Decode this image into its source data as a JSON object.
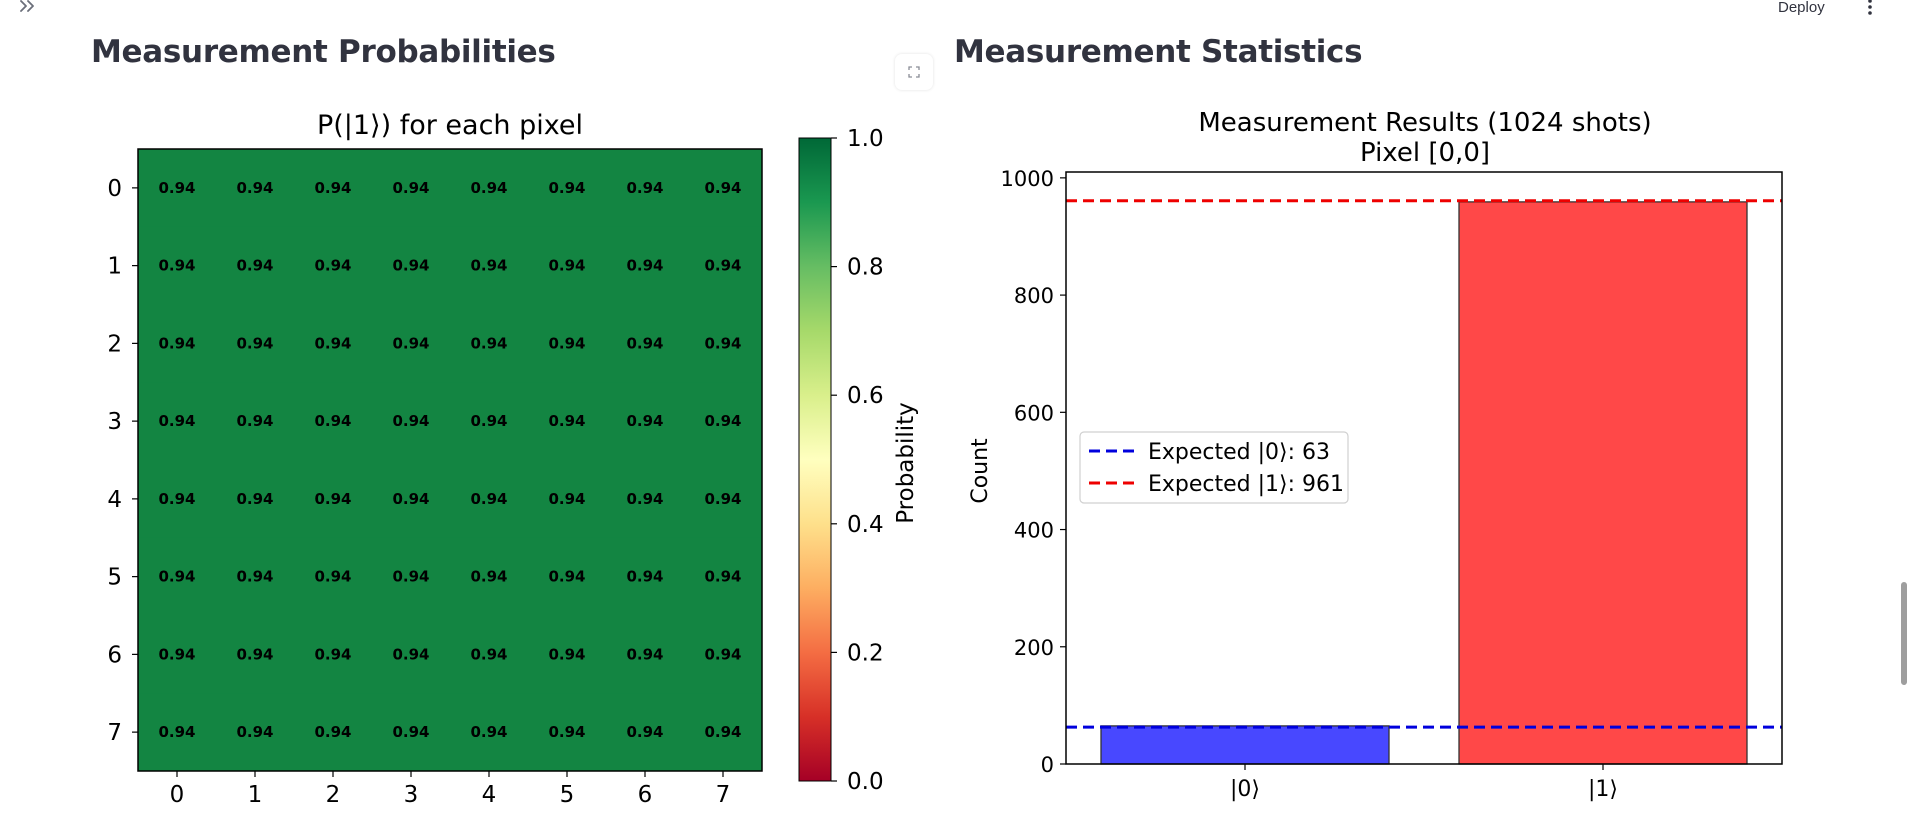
{
  "topbar": {
    "expand_icon": "double-chevron-right-icon",
    "deploy_label": "Deploy",
    "menu_icon": "kebab-menu-icon"
  },
  "left_panel": {
    "title": "Measurement Probabilities",
    "expand_icon": "fullscreen-icon"
  },
  "right_panel": {
    "title": "Measurement Statistics"
  },
  "chart_data": [
    {
      "type": "heatmap",
      "title": "P(|1⟩) for each pixel",
      "x_ticks": [
        "0",
        "1",
        "2",
        "3",
        "4",
        "5",
        "6",
        "7"
      ],
      "y_ticks": [
        "0",
        "1",
        "2",
        "3",
        "4",
        "5",
        "6",
        "7"
      ],
      "values": [
        [
          0.94,
          0.94,
          0.94,
          0.94,
          0.94,
          0.94,
          0.94,
          0.94
        ],
        [
          0.94,
          0.94,
          0.94,
          0.94,
          0.94,
          0.94,
          0.94,
          0.94
        ],
        [
          0.94,
          0.94,
          0.94,
          0.94,
          0.94,
          0.94,
          0.94,
          0.94
        ],
        [
          0.94,
          0.94,
          0.94,
          0.94,
          0.94,
          0.94,
          0.94,
          0.94
        ],
        [
          0.94,
          0.94,
          0.94,
          0.94,
          0.94,
          0.94,
          0.94,
          0.94
        ],
        [
          0.94,
          0.94,
          0.94,
          0.94,
          0.94,
          0.94,
          0.94,
          0.94
        ],
        [
          0.94,
          0.94,
          0.94,
          0.94,
          0.94,
          0.94,
          0.94,
          0.94
        ],
        [
          0.94,
          0.94,
          0.94,
          0.94,
          0.94,
          0.94,
          0.94,
          0.94
        ]
      ],
      "cell_labels": "0.94",
      "colormap": "RdYlGn",
      "cell_color": "#138542",
      "colorbar": {
        "label": "Probability",
        "range": [
          0.0,
          1.0
        ],
        "ticks": [
          "0.0",
          "0.2",
          "0.4",
          "0.6",
          "0.8",
          "1.0"
        ]
      }
    },
    {
      "type": "bar",
      "title": "Measurement Results (1024 shots)",
      "subtitle": "Pixel [0,0]",
      "categories": [
        "|0⟩",
        "|1⟩"
      ],
      "values": [
        65,
        959
      ],
      "colors": [
        "#4848ff",
        "#ff4848"
      ],
      "ylabel": "Count",
      "xlabel": "",
      "ylim": [
        0,
        1010
      ],
      "y_ticks": [
        "0",
        "200",
        "400",
        "600",
        "800",
        "1000"
      ],
      "reference_lines": [
        {
          "label": "Expected |0⟩: 63",
          "value": 63,
          "color": "#0000dd",
          "style": "dashed"
        },
        {
          "label": "Expected |1⟩: 961",
          "value": 961,
          "color": "#ee0000",
          "style": "dashed"
        }
      ],
      "legend_placement": "center-left"
    }
  ]
}
